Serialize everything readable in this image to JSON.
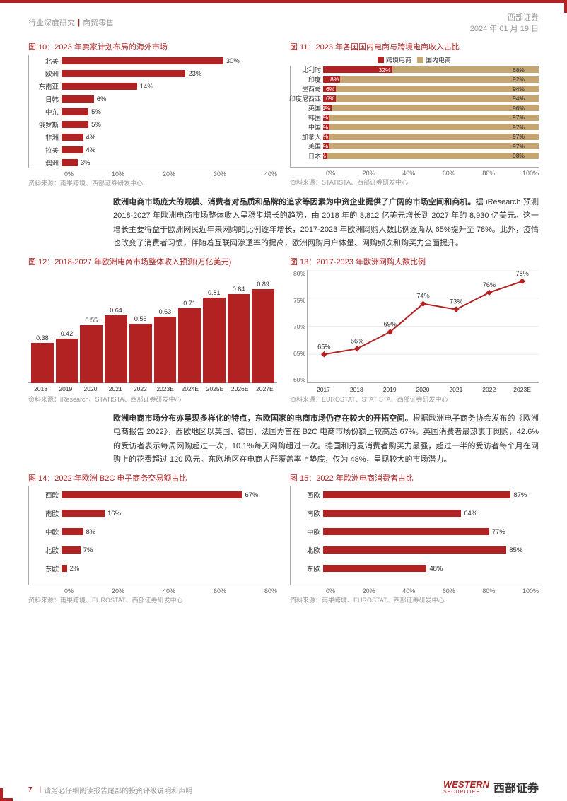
{
  "header": {
    "report_type": "行业深度研究",
    "category": "商贸零售",
    "company": "西部证券",
    "date": "2024 年 01 月 19 日"
  },
  "chart10": {
    "title": "图 10：2023 年卖家计划布局的海外市场",
    "type": "horizontal_bar",
    "bar_color": "#b22222",
    "xmax": 40,
    "xtick_step": 10,
    "xticks": [
      "0%",
      "10%",
      "20%",
      "30%",
      "40%"
    ],
    "data": [
      {
        "label": "北美",
        "value": 30
      },
      {
        "label": "欧洲",
        "value": 23
      },
      {
        "label": "东南亚",
        "value": 14
      },
      {
        "label": "日韩",
        "value": 6
      },
      {
        "label": "中东",
        "value": 5
      },
      {
        "label": "俄罗斯",
        "value": 5
      },
      {
        "label": "非洲",
        "value": 4
      },
      {
        "label": "拉美",
        "value": 4
      },
      {
        "label": "澳洲",
        "value": 3
      }
    ],
    "source": "资料来源：雨果跨境、西部证券研发中心"
  },
  "chart11": {
    "title": "图 11：2023 年各国国内电商与跨境电商收入占比",
    "type": "stacked_horizontal_bar",
    "legend": [
      {
        "label": "跨境电商",
        "color": "#b22222"
      },
      {
        "label": "国内电商",
        "color": "#c5a572"
      }
    ],
    "xticks": [
      "0%",
      "20%",
      "40%",
      "60%",
      "80%",
      "100%"
    ],
    "data": [
      {
        "label": "比利时",
        "cross": 32,
        "domestic": 68
      },
      {
        "label": "印度",
        "cross": 8,
        "domestic": 92
      },
      {
        "label": "墨西哥",
        "cross": 6,
        "domestic": 94
      },
      {
        "label": "印度尼西亚",
        "cross": 6,
        "domestic": 94
      },
      {
        "label": "英国",
        "cross": 4,
        "domestic": 96
      },
      {
        "label": "韩国",
        "cross": 3,
        "domestic": 97
      },
      {
        "label": "中国",
        "cross": 3,
        "domestic": 97
      },
      {
        "label": "加拿大",
        "cross": 3,
        "domestic": 97
      },
      {
        "label": "美国",
        "cross": 3,
        "domestic": 97
      },
      {
        "label": "日本",
        "cross": 2,
        "domestic": 98
      }
    ],
    "source": "资料来源：STATISTA、西部证券研发中心"
  },
  "paragraph1": {
    "bold": "欧洲电商市场庞大的规模、消费者对品质和品牌的追求等因素为中资企业提供了广阔的市场空间和商机。",
    "text": "据 iResearch 预测 2018-2027 年欧洲电商市场整体收入呈稳步增长的趋势，由 2018 年的 3,812 亿美元增长到 2027 年的 8,930 亿美元。这一增长主要得益于欧洲网民近年来网购的比例逐年增长，2017-2023 年欧洲网购人数比例逐渐从 65%提升至 78%。此外，疫情也改变了消费者习惯，伴随着互联网渗透率的提高，欧洲网购用户体量、网购频次和购买力全面提升。"
  },
  "chart12": {
    "title": "图 12：2018-2027 年欧洲电商市场整体收入预测(万亿美元)",
    "type": "bar",
    "bar_color": "#b22222",
    "ymax": 1.0,
    "categories": [
      "2018",
      "2019",
      "2020",
      "2021",
      "2022",
      "2023E",
      "2024E",
      "2025E",
      "2026E",
      "2027E"
    ],
    "values": [
      0.38,
      0.42,
      0.55,
      0.64,
      0.56,
      0.63,
      0.71,
      0.81,
      0.84,
      0.89
    ],
    "source": "资料来源：iResearch、STATISTA、西部证券研发中心"
  },
  "chart13": {
    "title": "图 13：2017-2023 年欧洲网购人数比例",
    "type": "line",
    "line_color": "#b22222",
    "ylim": [
      60,
      80
    ],
    "ytick_step": 5,
    "yticks": [
      "60%",
      "65%",
      "70%",
      "75%",
      "80%"
    ],
    "categories": [
      "2017",
      "2018",
      "2019",
      "2020",
      "2021",
      "2022",
      "2023E"
    ],
    "values": [
      65,
      66,
      69,
      74,
      73,
      76,
      78
    ],
    "source": "资料来源：EUROSTAT、STATISTA、西部证券研发中心"
  },
  "paragraph2": {
    "bold": "欧洲电商市场分布亦呈现多样化的特点，东欧国家的电商市场仍存在较大的开拓空间。",
    "text": "根据欧洲电子商务协会发布的《欧洲电商报告 2022》，西欧地区以英国、德国、法国为首在 B2C 电商市场份额上较高达 67%。英国消费者最热衷于网购，42.6%的受访者表示每周网购超过一次，10.1%每天网购超过一次。德国和丹麦消费者购买力最强，超过一半的受访者每个月在网购上的花费超过 120 欧元。东欧地区在电商人群覆盖率上垫底，仅为 48%，呈现较大的市场潜力。"
  },
  "chart14": {
    "title": "图 14：2022 年欧洲 B2C 电子商务交易额占比",
    "type": "horizontal_bar",
    "bar_color": "#b22222",
    "xmax": 80,
    "xticks": [
      "0%",
      "20%",
      "40%",
      "60%",
      "80%"
    ],
    "data": [
      {
        "label": "西欧",
        "value": 67
      },
      {
        "label": "南欧",
        "value": 16
      },
      {
        "label": "中欧",
        "value": 8
      },
      {
        "label": "北欧",
        "value": 7
      },
      {
        "label": "东欧",
        "value": 2
      }
    ],
    "source": "资料来源：雨果跨境、EUROSTAT、西部证券研发中心"
  },
  "chart15": {
    "title": "图 15：2022 年欧洲电商消费者占比",
    "type": "horizontal_bar",
    "bar_color": "#b22222",
    "xmax": 100,
    "xticks": [
      "0%",
      "20%",
      "40%",
      "60%",
      "80%",
      "100%"
    ],
    "data": [
      {
        "label": "西欧",
        "value": 87
      },
      {
        "label": "南欧",
        "value": 64
      },
      {
        "label": "中欧",
        "value": 77
      },
      {
        "label": "北欧",
        "value": 85
      },
      {
        "label": "东欧",
        "value": 48
      }
    ],
    "source": "资料来源：雨果跨境、EUROSTAT、西部证券研发中心"
  },
  "footer": {
    "page": "7",
    "disclaimer": "请务必仔细阅读报告尾部的投资评级说明和声明",
    "logo_en": "WESTERN",
    "logo_sub": "SECURITIES",
    "logo_cn": "西部证券"
  }
}
